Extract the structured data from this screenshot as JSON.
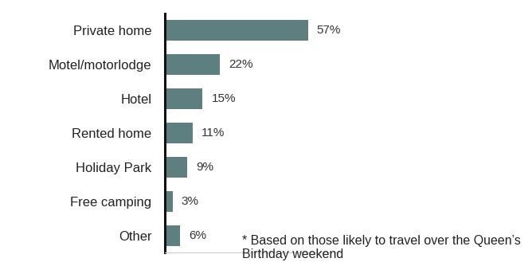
{
  "chart_data": {
    "type": "bar",
    "orientation": "horizontal",
    "categories": [
      "Private home",
      "Motel/motorlodge",
      "Hotel",
      "Rented home",
      "Holiday Park",
      "Free camping",
      "Other"
    ],
    "values": [
      57,
      22,
      15,
      11,
      9,
      3,
      6
    ],
    "value_labels": [
      "57%",
      "22%",
      "15%",
      "11%",
      "9%",
      "3%",
      "6%"
    ],
    "data_labels": true,
    "color": "#5e7f80",
    "xlim": [
      0,
      70
    ],
    "tick_labels": "y",
    "grid": false,
    "annotations": [
      "* Based on those likely to travel over the Queen’s Birthday weekend"
    ]
  }
}
